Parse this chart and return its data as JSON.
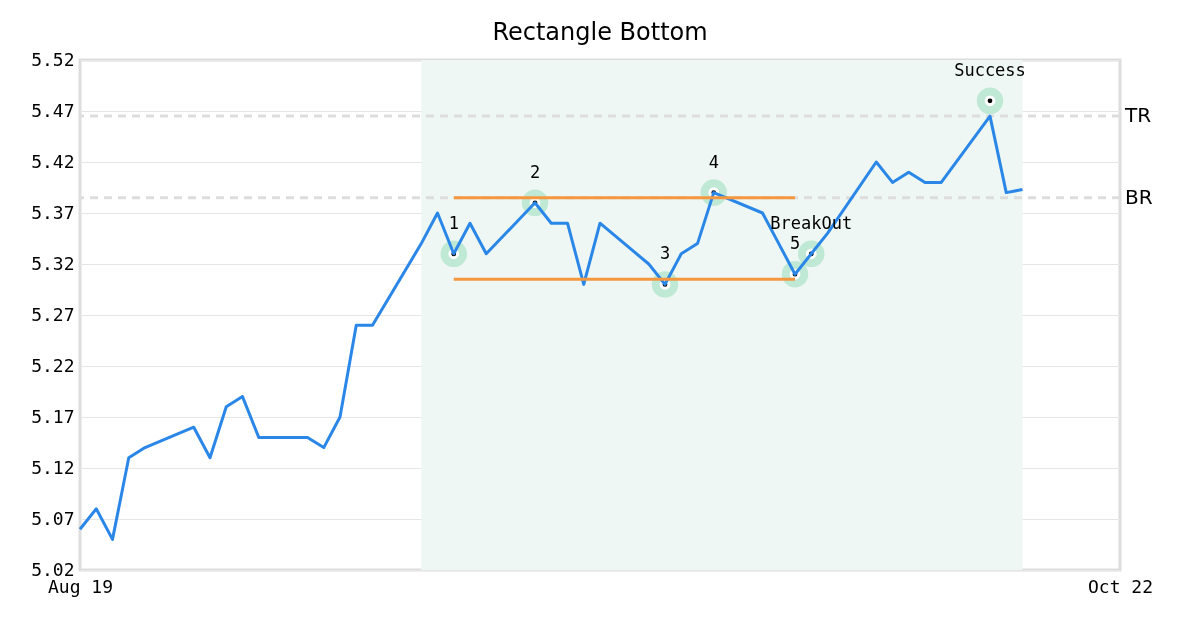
{
  "chart_data": {
    "type": "line",
    "title": "Rectangle Bottom",
    "x": [
      "--08-19",
      "--08-20",
      "--08-21",
      "--08-22",
      "--08-23",
      "--08-26",
      "--08-27",
      "--08-28",
      "--08-29",
      "--08-30",
      "--09-02",
      "--09-03",
      "--09-04",
      "--09-05",
      "--09-06",
      "--09-09",
      "--09-10",
      "--09-11",
      "--09-12",
      "--09-13",
      "--09-16",
      "--09-17",
      "--09-18",
      "--09-19",
      "--09-20",
      "--09-23",
      "--09-24",
      "--09-25",
      "--09-26",
      "--09-27",
      "--09-30",
      "--10-01",
      "--10-02",
      "--10-03",
      "--10-04",
      "--10-07",
      "--10-08",
      "--10-09",
      "--10-10",
      "--10-11",
      "--10-14",
      "--10-15",
      "--10-16"
    ],
    "series": [
      {
        "color": "#2a87e8",
        "values": [
          5.06,
          5.08,
          5.05,
          5.13,
          5.14,
          5.16,
          5.13,
          5.18,
          5.19,
          5.15,
          5.15,
          5.14,
          5.17,
          5.26,
          5.26,
          5.34,
          5.37,
          5.33,
          5.36,
          5.33,
          5.38,
          5.36,
          5.36,
          5.3,
          5.36,
          5.32,
          5.3,
          5.33,
          5.34,
          5.39,
          5.37,
          5.34,
          5.31,
          5.33,
          5.35,
          5.42,
          5.4,
          5.41,
          5.4,
          5.4,
          5.465,
          5.39,
          5.393
        ]
      },
      {
        "type": "line",
        "color": "#f5973f",
        "x": [
          "--09-11",
          "--10-02"
        ],
        "values": [
          5.385,
          5.385
        ]
      },
      {
        "type": "line",
        "color": "#f5973f",
        "x": [
          "--09-11",
          "--10-02"
        ],
        "values": [
          5.305,
          5.305
        ]
      },
      {
        "type": "scatter",
        "marker": "circle",
        "color": "#000000",
        "x": [
          "--09-11",
          "--09-16",
          "--09-24",
          "--09-27",
          "--10-02",
          "--10-03",
          "--10-14"
        ],
        "values": [
          5.33,
          5.38,
          5.3,
          5.39,
          5.31,
          5.33,
          5.48
        ]
      }
    ],
    "annotations": [
      {
        "text": "1",
        "x": "--09-11",
        "y": 5.33
      },
      {
        "text": "2",
        "x": "--09-16",
        "y": 5.38
      },
      {
        "text": "3",
        "x": "--09-24",
        "y": 5.3
      },
      {
        "text": "4",
        "x": "--09-27",
        "y": 5.39
      },
      {
        "text": "5",
        "x": "--10-02",
        "y": 5.31
      },
      {
        "text": "BreakOut",
        "x": "--10-03",
        "y": 5.33
      },
      {
        "text": "Success",
        "x": "--10-14",
        "y": 5.48
      }
    ],
    "ref_lines": [
      {
        "axis": "y",
        "value": 5.465,
        "label": "TR",
        "color": "#dddddd",
        "line_style": "dashed"
      },
      {
        "axis": "y",
        "value": 5.385,
        "label": "BR",
        "color": "#dddddd",
        "line_style": "dashed"
      }
    ],
    "bands": [
      {
        "axis": "x",
        "from": "--09-09",
        "to": "--10-16",
        "color": "#eef7f3"
      }
    ],
    "xlim": [
      "--08-19",
      "--10-22"
    ],
    "xticks": [
      {
        "value": "--08-19",
        "label": "Aug 19"
      },
      {
        "value": "--10-22",
        "label": "Oct 22"
      }
    ],
    "ylim": [
      5.02,
      5.52
    ],
    "yticks": [
      5.02,
      5.07,
      5.12,
      5.17,
      5.22,
      5.27,
      5.32,
      5.37,
      5.42,
      5.47,
      5.52
    ],
    "grid": "y"
  }
}
